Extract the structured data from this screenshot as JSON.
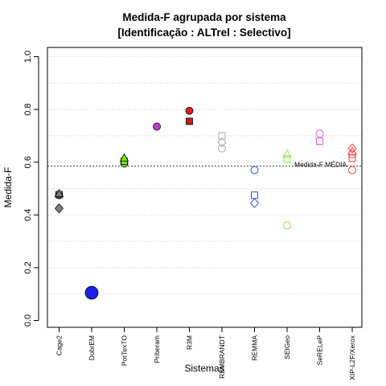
{
  "chart_data": {
    "type": "scatter",
    "title": "Medida-F agrupada por sistema",
    "subtitle": "[Identificação : ALTrel : Selectivo]",
    "xlabel": "Sistemas",
    "ylabel": "Medida-F",
    "ylim": [
      0.0,
      1.0
    ],
    "yticks": [
      "0.0",
      "0.2",
      "0.4",
      "0.6",
      "0.8",
      "1.0"
    ],
    "grid": true,
    "categories": [
      "Cage2",
      "DobrEM",
      "PorTexTO",
      "Priberam",
      "R3M",
      "REMBRANDT",
      "REMMA",
      "SEIGeo",
      "SeRELeP",
      "XIP-L2F/Xerox"
    ],
    "reference_line": {
      "label": "Medida-F MÉDIA",
      "value": 0.585
    },
    "points": [
      {
        "category": "Cage2",
        "y": 0.475,
        "shape": "circle",
        "color": "#7f7f7f",
        "filled": true
      },
      {
        "category": "Cage2",
        "y": 0.477,
        "shape": "square",
        "color": "#7f7f7f",
        "filled": true
      },
      {
        "category": "Cage2",
        "y": 0.48,
        "shape": "triangle",
        "color": "#7f7f7f",
        "filled": true
      },
      {
        "category": "Cage2",
        "y": 0.425,
        "shape": "diamond",
        "color": "#7f7f7f",
        "filled": true
      },
      {
        "category": "DobrEM",
        "y": 0.105,
        "shape": "circle-big",
        "color": "#1f1fe6",
        "filled": true
      },
      {
        "category": "PorTexTO",
        "y": 0.595,
        "shape": "circle",
        "color": "#76e619",
        "filled": true
      },
      {
        "category": "PorTexTO",
        "y": 0.603,
        "shape": "square",
        "color": "#76e619",
        "filled": true
      },
      {
        "category": "PorTexTO",
        "y": 0.615,
        "shape": "triangle",
        "color": "#76e619",
        "filled": true
      },
      {
        "category": "Priberam",
        "y": 0.735,
        "shape": "circle",
        "color": "#c63ad6",
        "filled": true
      },
      {
        "category": "R3M",
        "y": 0.795,
        "shape": "circle",
        "color": "#e02020",
        "filled": true
      },
      {
        "category": "R3M",
        "y": 0.755,
        "shape": "square",
        "color": "#c0201e",
        "filled": true
      },
      {
        "category": "REMBRANDT",
        "y": 0.7,
        "shape": "square",
        "color": "#a8a8a8",
        "filled": false
      },
      {
        "category": "REMBRANDT",
        "y": 0.675,
        "shape": "diamond",
        "color": "#a8a8a8",
        "filled": false
      },
      {
        "category": "REMBRANDT",
        "y": 0.652,
        "shape": "circle",
        "color": "#a8a8a8",
        "filled": false
      },
      {
        "category": "REMMA",
        "y": 0.57,
        "shape": "circle",
        "color": "#2a52e0",
        "filled": false
      },
      {
        "category": "REMMA",
        "y": 0.475,
        "shape": "square",
        "color": "#2a52e0",
        "filled": false
      },
      {
        "category": "REMMA",
        "y": 0.445,
        "shape": "diamond",
        "color": "#2a52e0",
        "filled": false
      },
      {
        "category": "SEIGeo",
        "y": 0.63,
        "shape": "triangle",
        "color": "#8ae642",
        "filled": false
      },
      {
        "category": "SEIGeo",
        "y": 0.612,
        "shape": "square",
        "color": "#8ae642",
        "filled": false
      },
      {
        "category": "SEIGeo",
        "y": 0.36,
        "shape": "circle",
        "color": "#8ae642",
        "filled": false
      },
      {
        "category": "SeRELeP",
        "y": 0.708,
        "shape": "circle",
        "color": "#e05ae0",
        "filled": false
      },
      {
        "category": "SeRELeP",
        "y": 0.68,
        "shape": "square",
        "color": "#e05ae0",
        "filled": false
      },
      {
        "category": "XIP-L2F/Xerox",
        "y": 0.652,
        "shape": "diamond",
        "color": "#f04040",
        "filled": false
      },
      {
        "category": "XIP-L2F/Xerox",
        "y": 0.64,
        "shape": "triangle",
        "color": "#f04040",
        "filled": false
      },
      {
        "category": "XIP-L2F/Xerox",
        "y": 0.63,
        "shape": "circle",
        "color": "#f04040",
        "filled": false
      },
      {
        "category": "XIP-L2F/Xerox",
        "y": 0.615,
        "shape": "square",
        "color": "#f04040",
        "filled": false
      },
      {
        "category": "XIP-L2F/Xerox",
        "y": 0.57,
        "shape": "circle",
        "color": "#f04040",
        "filled": false
      }
    ]
  }
}
